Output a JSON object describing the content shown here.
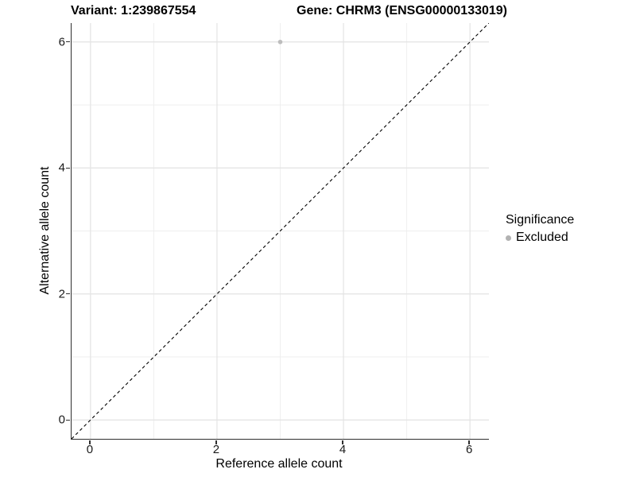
{
  "titles": {
    "left": "Variant: 1:239867554",
    "right": "Gene: CHRM3 (ENSG00000133019)"
  },
  "chart_data": {
    "type": "scatter",
    "title_left": "Variant: 1:239867554",
    "title_right": "Gene: CHRM3 (ENSG00000133019)",
    "xlabel": "Reference allele count",
    "ylabel": "Alternative allele count",
    "xlim": [
      -0.3,
      6.3
    ],
    "ylim": [
      -0.3,
      6.3
    ],
    "x_major_ticks": [
      0,
      2,
      4,
      6
    ],
    "x_minor_ticks": [
      1,
      3,
      5
    ],
    "y_major_ticks": [
      0,
      2,
      4,
      6
    ],
    "y_minor_ticks": [
      1,
      3,
      5
    ],
    "grid": true,
    "points": [
      {
        "x": 3,
        "y": 6,
        "series": "Excluded"
      }
    ],
    "reference_line": {
      "type": "identity",
      "from": [
        -0.3,
        -0.3
      ],
      "to": [
        6.3,
        6.3
      ],
      "style": "dashed",
      "color": "#000000"
    },
    "legend": {
      "title": "Significance",
      "position": "right",
      "items": [
        {
          "label": "Excluded",
          "color": "#b2b2b2"
        }
      ]
    }
  },
  "colors": {
    "background": "#ffffff",
    "grid_major": "#e3e3e3",
    "grid_minor": "#eeeeee",
    "axis_line": "#2f2f2f",
    "tick_text": "#1a1a1a",
    "excluded_point": "#bdbdbd",
    "dashed_line": "#000000"
  }
}
